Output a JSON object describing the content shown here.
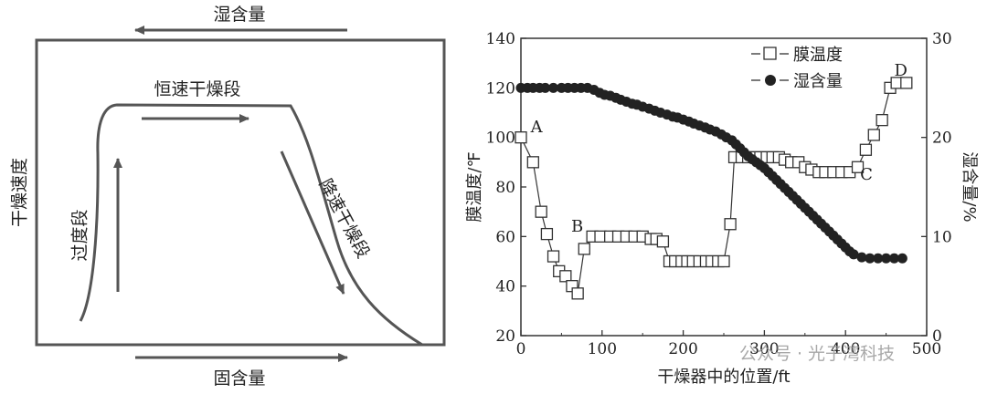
{
  "diagram": {
    "top_label": "湿含量",
    "bottom_label": "固含量",
    "left_label": "干燥速度",
    "transition_label": "过度段",
    "constant_label": "恒速干燥段",
    "falling_label": "降速干燥段"
  },
  "watermark": "公众号 · 光子湾科技",
  "chart_data": {
    "type": "line",
    "xlabel": "干燥器中的位置/ft",
    "ylabel": "膜温度/℉",
    "ylabel_right": "湿含量/%",
    "xlim": [
      0,
      500
    ],
    "ylim": [
      20,
      140
    ],
    "ylim_right": [
      0,
      30
    ],
    "x_ticks": [
      "0",
      "100",
      "200",
      "300",
      "400",
      "500"
    ],
    "y_ticks": [
      "20",
      "40",
      "60",
      "80",
      "100",
      "120",
      "140"
    ],
    "y_ticks_right": [
      "0",
      "10",
      "20",
      "30"
    ],
    "legend": [
      {
        "name": "膜温度",
        "marker": "open-square"
      },
      {
        "name": "湿含量",
        "marker": "filled-circle"
      }
    ],
    "annotations": [
      {
        "text": "A",
        "x": 12,
        "y": 102
      },
      {
        "text": "B",
        "x": 62,
        "y": 62
      },
      {
        "text": "C",
        "x": 418,
        "y": 83
      },
      {
        "text": "D",
        "x": 460,
        "y": 125
      }
    ],
    "series": [
      {
        "name": "膜温度",
        "axis": "left",
        "x": [
          0,
          15,
          25,
          32,
          40,
          47,
          55,
          63,
          70,
          78,
          88,
          98,
          110,
          120,
          130,
          140,
          150,
          160,
          167,
          175,
          183,
          190,
          198,
          205,
          212,
          220,
          228,
          235,
          243,
          250,
          258,
          263,
          272,
          280,
          288,
          295,
          303,
          310,
          318,
          325,
          333,
          342,
          350,
          358,
          367,
          375,
          385,
          395,
          405,
          415,
          425,
          435,
          445,
          455,
          463,
          475
        ],
        "y": [
          100,
          90,
          70,
          61,
          52,
          46,
          44,
          40,
          37,
          55,
          60,
          60,
          60,
          60,
          60,
          60,
          60,
          59,
          59,
          58,
          50,
          50,
          50,
          50,
          50,
          50,
          50,
          50,
          50,
          50,
          65,
          92,
          92,
          92,
          92,
          92,
          92,
          92,
          92,
          91,
          90,
          90,
          88,
          87,
          86,
          86,
          86,
          86,
          86,
          88,
          95,
          101,
          107,
          120,
          122,
          122
        ]
      },
      {
        "name": "湿含量",
        "axis": "right",
        "x": [
          0,
          8,
          15,
          23,
          30,
          40,
          50,
          58,
          66,
          74,
          82,
          90,
          97,
          103,
          110,
          117,
          123,
          130,
          137,
          143,
          150,
          158,
          165,
          172,
          180,
          187,
          193,
          200,
          207,
          213,
          220,
          227,
          233,
          240,
          247,
          253,
          260,
          265,
          270,
          275,
          280,
          285,
          290,
          295,
          300,
          305,
          310,
          315,
          320,
          325,
          330,
          335,
          340,
          345,
          350,
          355,
          360,
          365,
          370,
          375,
          380,
          385,
          390,
          395,
          400,
          405,
          410,
          420,
          430,
          440,
          450,
          460,
          470
        ],
        "y": [
          25,
          25,
          25,
          25,
          25,
          25,
          25,
          25,
          25,
          25,
          25,
          24.8,
          24.5,
          24.3,
          24.2,
          24,
          23.8,
          23.6,
          23.4,
          23.3,
          23.1,
          22.9,
          22.7,
          22.5,
          22.3,
          22.1,
          22,
          21.8,
          21.6,
          21.4,
          21.2,
          21,
          20.8,
          20.6,
          20.3,
          20,
          19.7,
          19.3,
          18.9,
          18.5,
          18.1,
          17.8,
          17.5,
          17.2,
          16.9,
          16.5,
          16.1,
          15.7,
          15.3,
          14.9,
          14.5,
          14.1,
          13.7,
          13.3,
          12.9,
          12.5,
          12.1,
          11.7,
          11.3,
          10.9,
          10.5,
          10.1,
          9.7,
          9.3,
          8.9,
          8.5,
          8.2,
          7.9,
          7.8,
          7.8,
          7.8,
          7.8,
          7.8
        ]
      }
    ]
  }
}
